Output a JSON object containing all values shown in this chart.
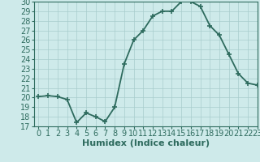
{
  "x": [
    0,
    1,
    2,
    3,
    4,
    5,
    6,
    7,
    8,
    9,
    10,
    11,
    12,
    13,
    14,
    15,
    16,
    17,
    18,
    19,
    20,
    21,
    22,
    23
  ],
  "y": [
    20.1,
    20.2,
    20.1,
    19.8,
    17.4,
    18.4,
    18.0,
    17.5,
    19.0,
    23.5,
    26.0,
    27.0,
    28.5,
    29.0,
    29.0,
    30.0,
    30.0,
    29.5,
    27.5,
    26.5,
    24.5,
    22.5,
    21.5,
    21.3
  ],
  "xlabel": "Humidex (Indice chaleur)",
  "ylim": [
    17,
    30
  ],
  "xlim": [
    -0.5,
    23
  ],
  "yticks": [
    17,
    18,
    19,
    20,
    21,
    22,
    23,
    24,
    25,
    26,
    27,
    28,
    29,
    30
  ],
  "xticks": [
    0,
    1,
    2,
    3,
    4,
    5,
    6,
    7,
    8,
    9,
    10,
    11,
    12,
    13,
    14,
    15,
    16,
    17,
    18,
    19,
    20,
    21,
    22,
    23
  ],
  "line_color": "#2e6b5e",
  "marker_color": "#2e6b5e",
  "bg_color": "#ceeaea",
  "grid_color": "#a8cccc",
  "tick_label_color": "#2e6b5e",
  "xlabel_color": "#2e6b5e",
  "xlabel_fontsize": 8,
  "tick_fontsize": 7,
  "linewidth": 1.3,
  "markersize": 4
}
